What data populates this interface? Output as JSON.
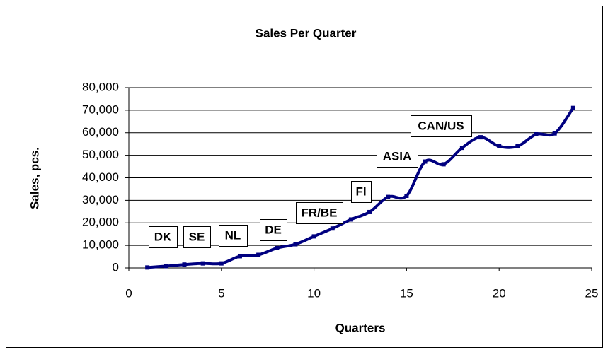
{
  "chart_data": {
    "type": "line",
    "title": "Sales Per Quarter",
    "x_label": "Quarters",
    "y_label": "Sales, pcs.",
    "x": [
      1,
      2,
      3,
      4,
      5,
      6,
      7,
      8,
      9,
      10,
      11,
      12,
      13,
      14,
      15,
      16,
      17,
      18,
      19,
      20,
      21,
      22,
      23,
      24
    ],
    "series": [
      {
        "name": "Sales",
        "color": "#000080",
        "values": [
          200,
          800,
          1500,
          2000,
          2000,
          5200,
          5800,
          8800,
          10500,
          14000,
          17500,
          21500,
          24800,
          31500,
          32000,
          47200,
          46000,
          53300,
          58000,
          54000,
          54000,
          59300,
          59700,
          71000
        ]
      }
    ],
    "xlim": [
      0,
      25
    ],
    "xticks": [
      0,
      5,
      10,
      15,
      20,
      25
    ],
    "ylim": [
      0,
      80000
    ],
    "yticks": [
      0,
      {
        "value": 10000,
        "label": "10,000"
      },
      {
        "value": 20000,
        "label": "20,000"
      },
      {
        "value": 30000,
        "label": "30,000"
      },
      {
        "value": 40000,
        "label": "40,000"
      },
      {
        "value": 50000,
        "label": "50,000"
      },
      {
        "value": 60000,
        "label": "60,000"
      },
      {
        "value": 70000,
        "label": "70,000"
      },
      {
        "value": 80000,
        "label": "80,000"
      }
    ],
    "grid": true,
    "annotations": [
      "DK",
      "SE",
      "NL",
      "DE",
      "FR/BE",
      "FI",
      "ASIA",
      "CAN/US"
    ]
  }
}
